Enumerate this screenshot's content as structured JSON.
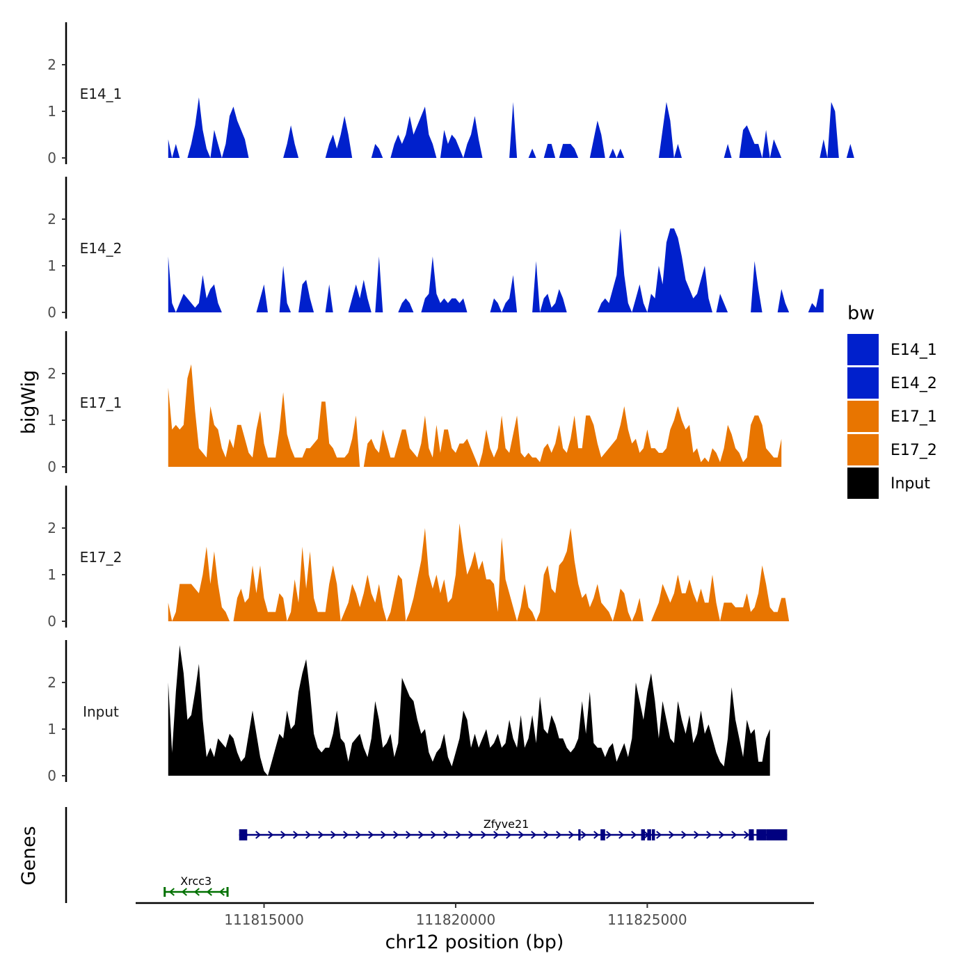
{
  "chart_data": {
    "type": "area",
    "title": "",
    "xlabel": "chr12 position (bp)",
    "ylabel": "bigWig",
    "genes_label": "Genes",
    "xlim": [
      111811650,
      111829350
    ],
    "x_ticks": [
      111815000,
      111820000,
      111825000
    ],
    "x_tick_labels": [
      "111815000",
      "111820000",
      "111825000"
    ],
    "ylim": [
      0,
      3
    ],
    "y_ticks": [
      0,
      1,
      2
    ],
    "y_tick_labels": [
      "0",
      "1",
      "2"
    ],
    "bin_start": 111812500,
    "bin_size": 100,
    "legend": {
      "title": "bw",
      "entries": [
        {
          "name": "E14_1",
          "color": "#0020CC"
        },
        {
          "name": "E14_2",
          "color": "#0020CC"
        },
        {
          "name": "E17_1",
          "color": "#E87500"
        },
        {
          "name": "E17_2",
          "color": "#E87500"
        },
        {
          "name": "Input",
          "color": "#000000"
        }
      ]
    },
    "series": [
      {
        "name": "E14_1",
        "color": "#0020CC",
        "values": [
          0.4,
          0,
          0.3,
          0,
          0,
          0,
          0.3,
          0.7,
          1.3,
          0.6,
          0.2,
          0,
          0.6,
          0.3,
          0,
          0.3,
          0.9,
          1.1,
          0.8,
          0.6,
          0.4,
          0,
          0,
          0,
          0,
          0,
          0,
          0,
          0,
          0,
          0,
          0.3,
          0.7,
          0.3,
          0,
          0,
          0,
          0,
          0,
          0,
          0,
          0,
          0.3,
          0.5,
          0.2,
          0.5,
          0.9,
          0.5,
          0,
          0,
          0,
          0,
          0,
          0,
          0.3,
          0.2,
          0,
          0,
          0,
          0.3,
          0.5,
          0.3,
          0.5,
          0.9,
          0.5,
          0.7,
          0.9,
          1.1,
          0.5,
          0.3,
          0,
          0,
          0.6,
          0.3,
          0.5,
          0.4,
          0.2,
          0,
          0.3,
          0.5,
          0.9,
          0.4,
          0,
          0,
          0,
          0,
          0,
          0,
          0,
          0,
          1.2,
          0,
          0,
          0,
          0,
          0.2,
          0,
          0,
          0,
          0.3,
          0.3,
          0,
          0,
          0.3,
          0.3,
          0.3,
          0.2,
          0,
          0,
          0,
          0,
          0.4,
          0.8,
          0.5,
          0,
          0,
          0.2,
          0,
          0.2,
          0,
          0,
          0,
          0,
          0,
          0,
          0,
          0,
          0,
          0,
          0.6,
          1.2,
          0.8,
          0,
          0.3,
          0,
          0,
          0,
          0,
          0,
          0,
          0,
          0,
          0,
          0,
          0,
          0,
          0.3,
          0,
          0,
          0,
          0.6,
          0.7,
          0.5,
          0.3,
          0.3,
          0,
          0.6,
          0,
          0.4,
          0.2,
          0,
          0,
          0,
          0,
          0,
          0,
          0,
          0,
          0,
          0,
          0,
          0.4,
          0,
          1.2,
          1.0,
          0,
          0,
          0,
          0.3,
          0
        ]
      },
      {
        "name": "E14_2",
        "color": "#0020CC",
        "values": [
          1.2,
          0.2,
          0,
          0.2,
          0.4,
          0.3,
          0.2,
          0.1,
          0.2,
          0.8,
          0.3,
          0.5,
          0.6,
          0.2,
          0,
          0,
          0,
          0,
          0,
          0,
          0,
          0,
          0,
          0,
          0.3,
          0.6,
          0,
          0,
          0,
          0,
          1.0,
          0.2,
          0,
          0,
          0,
          0.6,
          0.7,
          0.3,
          0,
          0,
          0,
          0,
          0.6,
          0,
          0,
          0,
          0,
          0,
          0.3,
          0.6,
          0.3,
          0.7,
          0.3,
          0,
          0,
          1.2,
          0,
          0,
          0,
          0,
          0,
          0.2,
          0.3,
          0.2,
          0,
          0,
          0,
          0.3,
          0.4,
          1.2,
          0.4,
          0.2,
          0.3,
          0.2,
          0.3,
          0.3,
          0.2,
          0.3,
          0,
          0,
          0,
          0,
          0,
          0,
          0,
          0.3,
          0.2,
          0,
          0.2,
          0.3,
          0.8,
          0,
          0,
          0,
          0,
          0,
          1.1,
          0,
          0.3,
          0.4,
          0.1,
          0.2,
          0.5,
          0.3,
          0,
          0,
          0,
          0,
          0,
          0,
          0,
          0,
          0,
          0.2,
          0.3,
          0.2,
          0.5,
          0.8,
          1.8,
          0.8,
          0.2,
          0,
          0.3,
          0.6,
          0.2,
          0,
          0.4,
          0.3,
          1.0,
          0.6,
          1.5,
          1.8,
          1.8,
          1.6,
          1.2,
          0.7,
          0.5,
          0.3,
          0.4,
          0.7,
          1.0,
          0.3,
          0,
          0,
          0.4,
          0.2,
          0,
          0,
          0,
          0,
          0,
          0,
          0,
          1.1,
          0.5,
          0,
          0,
          0,
          0,
          0,
          0.5,
          0.2,
          0,
          0,
          0,
          0,
          0,
          0,
          0.2,
          0.1,
          0.5,
          0.5
        ]
      },
      {
        "name": "E17_1",
        "color": "#E87500",
        "values": [
          1.7,
          0.8,
          0.9,
          0.8,
          0.9,
          1.9,
          2.2,
          1.2,
          0.4,
          0.3,
          0.2,
          1.3,
          0.9,
          0.8,
          0.4,
          0.2,
          0.6,
          0.4,
          0.9,
          0.9,
          0.6,
          0.3,
          0.2,
          0.8,
          1.2,
          0.5,
          0.2,
          0.2,
          0.2,
          0.8,
          1.6,
          0.7,
          0.4,
          0.2,
          0.2,
          0.2,
          0.4,
          0.4,
          0.5,
          0.6,
          1.4,
          1.4,
          0.5,
          0.4,
          0.2,
          0.2,
          0.2,
          0.3,
          0.6,
          1.1,
          0,
          0,
          0.5,
          0.6,
          0.4,
          0.3,
          0.8,
          0.5,
          0.2,
          0.2,
          0.5,
          0.8,
          0.8,
          0.4,
          0.3,
          0.2,
          0.5,
          1.1,
          0.4,
          0.2,
          0.9,
          0.3,
          0.8,
          0.8,
          0.4,
          0.3,
          0.5,
          0.5,
          0.6,
          0.4,
          0.2,
          0,
          0.3,
          0.8,
          0.4,
          0.2,
          0.4,
          1.1,
          0.4,
          0.3,
          0.7,
          1.1,
          0.3,
          0.2,
          0.3,
          0.2,
          0.2,
          0.1,
          0.4,
          0.5,
          0.3,
          0.5,
          0.9,
          0.4,
          0.3,
          0.6,
          1.1,
          0.4,
          0.4,
          1.1,
          1.1,
          0.9,
          0.5,
          0.2,
          0.3,
          0.4,
          0.5,
          0.6,
          0.9,
          1.3,
          0.8,
          0.5,
          0.6,
          0.3,
          0.4,
          0.8,
          0.4,
          0.4,
          0.3,
          0.3,
          0.4,
          0.8,
          1.0,
          1.3,
          1.0,
          0.8,
          0.9,
          0.3,
          0.4,
          0.1,
          0.2,
          0.1,
          0.4,
          0.3,
          0.1,
          0.4,
          0.9,
          0.7,
          0.4,
          0.3,
          0.1,
          0.2,
          0.9,
          1.1,
          1.1,
          0.9,
          0.4,
          0.3,
          0.2,
          0.2,
          0.6
        ]
      },
      {
        "name": "E17_2",
        "color": "#E87500",
        "values": [
          0.4,
          0,
          0.2,
          0.8,
          0.8,
          0.8,
          0.8,
          0.7,
          0.6,
          1.0,
          1.6,
          0.8,
          1.5,
          0.8,
          0.3,
          0.2,
          0,
          0,
          0.5,
          0.7,
          0.4,
          0.5,
          1.2,
          0.6,
          1.2,
          0.5,
          0.2,
          0.2,
          0.2,
          0.6,
          0.5,
          0,
          0.2,
          0.9,
          0.4,
          1.6,
          0.7,
          1.5,
          0.5,
          0.2,
          0.2,
          0.2,
          0.8,
          1.2,
          0.8,
          0,
          0.2,
          0.4,
          0.8,
          0.6,
          0.3,
          0.6,
          1.0,
          0.6,
          0.4,
          0.8,
          0.3,
          0,
          0.2,
          0.6,
          1.0,
          0.9,
          0,
          0.2,
          0.5,
          0.9,
          1.3,
          2.0,
          1.0,
          0.7,
          1.0,
          0.6,
          0.9,
          0.4,
          0.5,
          1.0,
          2.1,
          1.5,
          1.0,
          1.2,
          1.5,
          1.1,
          1.3,
          0.9,
          0.9,
          0.8,
          0.2,
          1.8,
          0.9,
          0.6,
          0.3,
          0,
          0.3,
          0.8,
          0.3,
          0.2,
          0,
          0.2,
          1.0,
          1.2,
          0.7,
          0.6,
          1.2,
          1.3,
          1.5,
          2.0,
          1.3,
          0.8,
          0.5,
          0.6,
          0.3,
          0.5,
          0.8,
          0.4,
          0.3,
          0.2,
          0,
          0.3,
          0.7,
          0.6,
          0.2,
          0,
          0.2,
          0.5,
          0,
          0,
          0,
          0.2,
          0.4,
          0.8,
          0.6,
          0.4,
          0.6,
          1.0,
          0.6,
          0.6,
          0.9,
          0.6,
          0.4,
          0.7,
          0.4,
          0.4,
          1.0,
          0.4,
          0,
          0.4,
          0.4,
          0.4,
          0.3,
          0.3,
          0.3,
          0.6,
          0.2,
          0.3,
          0.6,
          1.2,
          0.8,
          0.3,
          0.2,
          0.2,
          0.5,
          0.5,
          0
        ]
      },
      {
        "name": "Input",
        "color": "#000000",
        "values": [
          2.0,
          0.5,
          1.8,
          2.8,
          2.2,
          1.2,
          1.3,
          1.8,
          2.4,
          1.2,
          0.4,
          0.6,
          0.4,
          0.8,
          0.7,
          0.6,
          0.9,
          0.8,
          0.5,
          0.3,
          0.4,
          0.9,
          1.4,
          0.9,
          0.4,
          0.1,
          0,
          0.3,
          0.6,
          0.9,
          0.8,
          1.4,
          1.0,
          1.1,
          1.8,
          2.2,
          2.5,
          1.8,
          0.9,
          0.6,
          0.5,
          0.6,
          0.6,
          0.9,
          1.4,
          0.8,
          0.7,
          0.3,
          0.7,
          0.8,
          0.9,
          0.6,
          0.4,
          0.8,
          1.6,
          1.2,
          0.6,
          0.7,
          0.9,
          0.4,
          0.7,
          2.1,
          1.9,
          1.7,
          1.6,
          1.2,
          0.9,
          1.0,
          0.5,
          0.3,
          0.5,
          0.6,
          0.9,
          0.4,
          0.2,
          0.5,
          0.8,
          1.4,
          1.2,
          0.6,
          0.9,
          0.6,
          0.8,
          1.0,
          0.6,
          0.7,
          0.9,
          0.6,
          0.7,
          1.2,
          0.8,
          0.6,
          1.3,
          0.6,
          0.8,
          1.3,
          0.7,
          1.7,
          1.0,
          0.9,
          1.3,
          1.1,
          0.8,
          0.8,
          0.6,
          0.5,
          0.6,
          0.8,
          1.6,
          0.9,
          1.8,
          0.7,
          0.6,
          0.6,
          0.4,
          0.6,
          0.7,
          0.3,
          0.5,
          0.7,
          0.4,
          0.8,
          2.0,
          1.6,
          1.2,
          1.8,
          2.2,
          1.6,
          0.8,
          1.6,
          1.2,
          0.8,
          0.7,
          1.6,
          1.2,
          0.9,
          1.3,
          0.7,
          0.9,
          1.4,
          0.9,
          1.1,
          0.8,
          0.5,
          0.3,
          0.2,
          0.8,
          1.9,
          1.2,
          0.8,
          0.4,
          1.2,
          0.9,
          1.0,
          0.3,
          0.3,
          0.8,
          1.0
        ]
      }
    ],
    "genes": [
      {
        "name": "Xrcc3",
        "start": 111812400,
        "end": 111814050,
        "strand": "-",
        "color": "#007000",
        "row": 2,
        "exons": [
          [
            111812380,
            111812430
          ],
          [
            111814020,
            111814060
          ]
        ]
      },
      {
        "name": "Zfyve21",
        "start": 111814350,
        "end": 111828650,
        "strand": "+",
        "color": "#000080",
        "row": 1,
        "exons": [
          [
            111814350,
            111814560
          ],
          [
            111823200,
            111823260
          ],
          [
            111823780,
            111823900
          ],
          [
            111824840,
            111824940
          ],
          [
            111825000,
            111825100
          ],
          [
            111825120,
            111825200
          ],
          [
            111827650,
            111827780
          ],
          [
            111827850,
            111828100
          ],
          [
            111828100,
            111828650
          ]
        ]
      }
    ]
  }
}
